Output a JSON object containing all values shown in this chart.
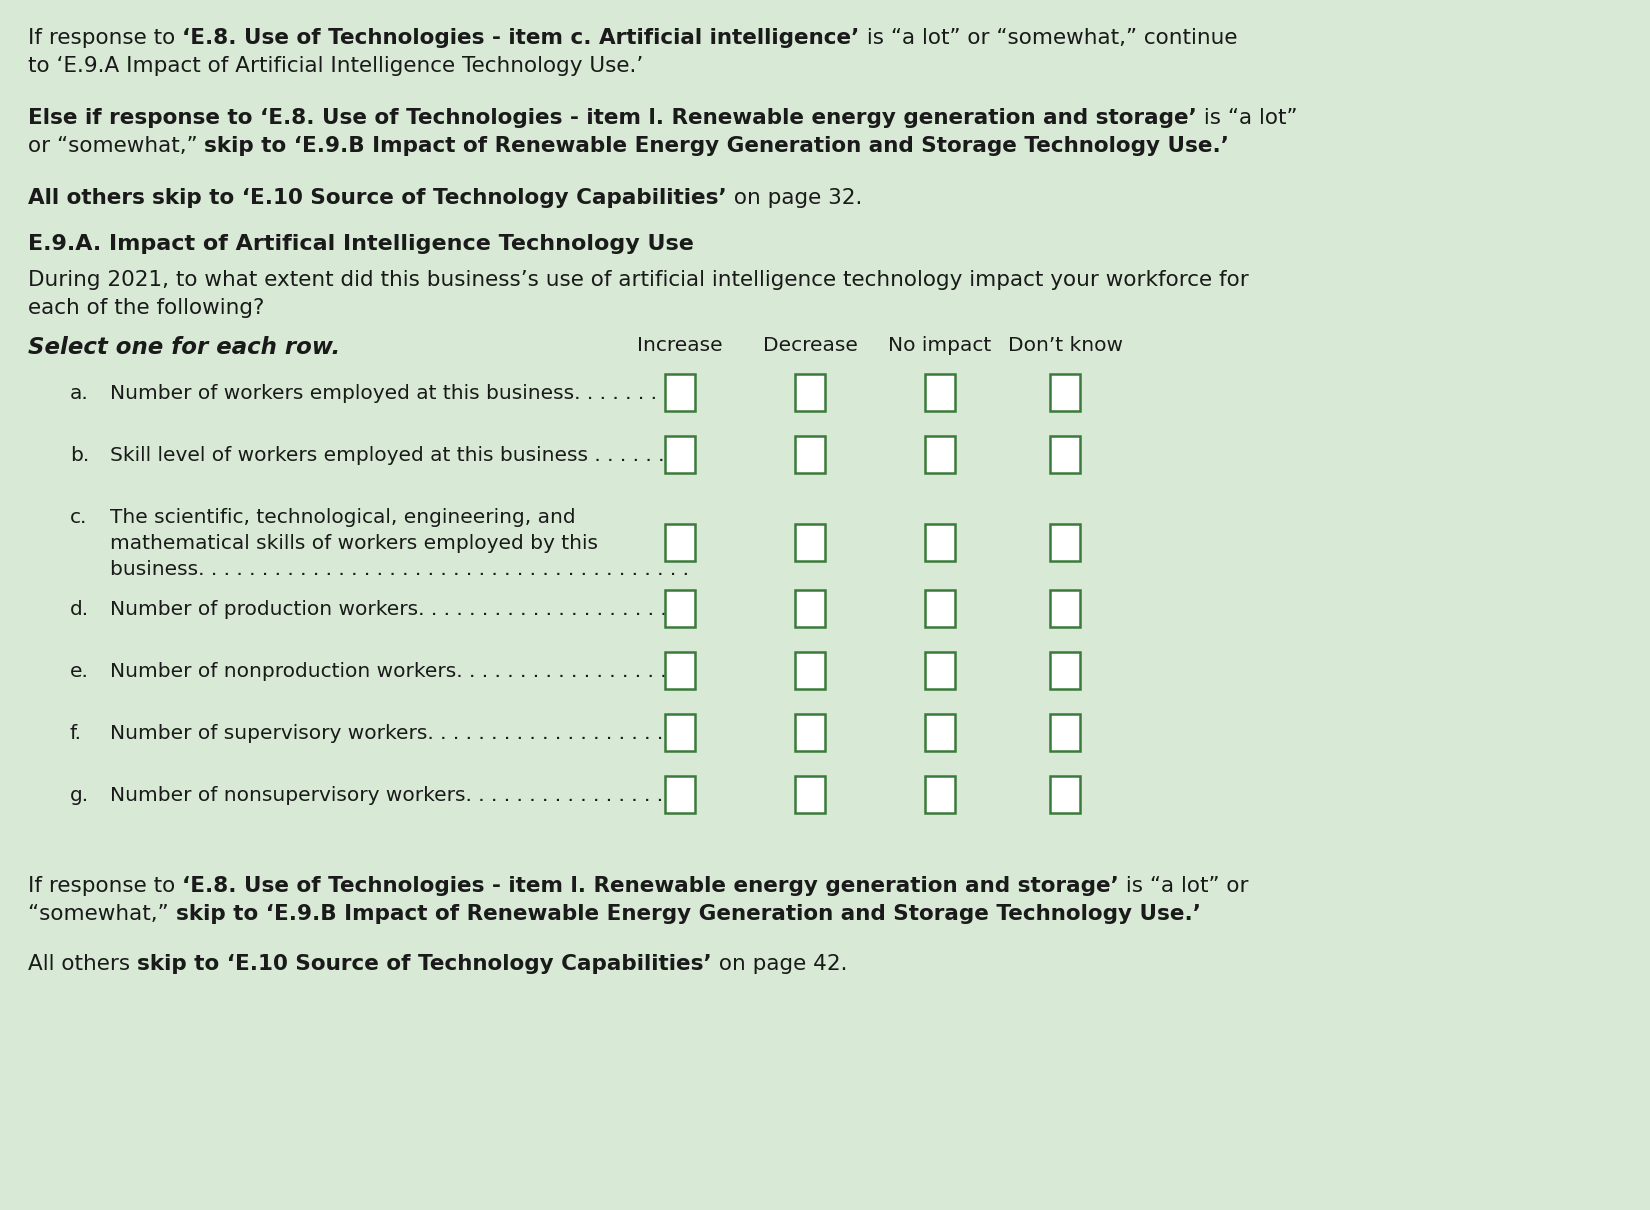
{
  "bg_color": "#d8ead6",
  "text_color": "#1a1a1a",
  "checkbox_bg": "#ffffff",
  "checkbox_border": "#3a7a3a",
  "figsize": [
    16.5,
    12.1
  ],
  "dpi": 100,
  "section_title": "E.9.A. Impact of Artifical Intelligence Technology Use",
  "question_text1": "During 2021, to what extent did this business’s use of artificial intelligence technology impact your workforce for",
  "question_text2": "each of the following?",
  "select_text": "Select one for each row.",
  "col_headers": [
    "Increase",
    "Decrease",
    "No impact",
    "Don’t know"
  ],
  "rows": [
    {
      "label": "a.",
      "lines": [
        "Number of workers employed at this business. . . . . . . . ."
      ],
      "n_text_lines": 1
    },
    {
      "label": "b.",
      "lines": [
        "Skill level of workers employed at this business . . . . . . . ."
      ],
      "n_text_lines": 1
    },
    {
      "label": "c.",
      "lines": [
        "The scientific, technological, engineering, and",
        "mathematical skills of workers employed by this",
        "business. . . . . . . . . . . . . . . . . . . . . . . . . . . . . . . . . . . . . . ."
      ],
      "n_text_lines": 3
    },
    {
      "label": "d.",
      "lines": [
        "Number of production workers. . . . . . . . . . . . . . . . . . . . . ."
      ],
      "n_text_lines": 1
    },
    {
      "label": "e.",
      "lines": [
        "Number of nonproduction workers. . . . . . . . . . . . . . . . . ."
      ],
      "n_text_lines": 1
    },
    {
      "label": "f.",
      "lines": [
        "Number of supervisory workers. . . . . . . . . . . . . . . . . . . . ."
      ],
      "n_text_lines": 1
    },
    {
      "label": "g.",
      "lines": [
        "Number of nonsupervisory workers. . . . . . . . . . . . . . . . ."
      ],
      "n_text_lines": 1
    }
  ]
}
